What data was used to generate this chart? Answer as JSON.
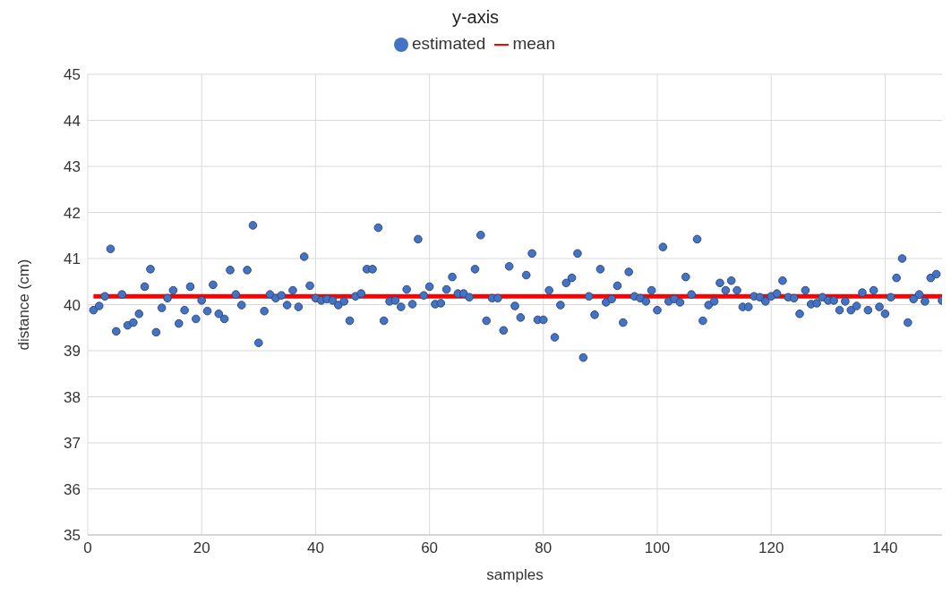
{
  "chart_data": {
    "type": "scatter",
    "title": "y-axis",
    "xlabel": "samples",
    "ylabel": "distance (cm)",
    "xlim": [
      0,
      150
    ],
    "xticks": [
      0,
      20,
      40,
      60,
      80,
      100,
      120,
      140
    ],
    "ylim": [
      35,
      45
    ],
    "yticks": [
      35,
      36,
      37,
      38,
      39,
      40,
      41,
      42,
      43,
      44,
      45
    ],
    "grid": true,
    "legend": "top",
    "marker": "circle",
    "series": [
      {
        "name": "estimated",
        "color": "#4472c4",
        "x": [
          1,
          2,
          3,
          4,
          5,
          6,
          7,
          8,
          9,
          10,
          11,
          12,
          13,
          14,
          15,
          16,
          17,
          18,
          19,
          20,
          21,
          22,
          23,
          24,
          25,
          26,
          27,
          28,
          29,
          30,
          31,
          32,
          33,
          34,
          35,
          36,
          37,
          38,
          39,
          40,
          41,
          42,
          43,
          44,
          45,
          46,
          47,
          48,
          49,
          50,
          51,
          52,
          53,
          54,
          55,
          56,
          57,
          58,
          59,
          60,
          61,
          62,
          63,
          64,
          65,
          66,
          67,
          68,
          69,
          70,
          71,
          72,
          73,
          74,
          75,
          76,
          77,
          78,
          79,
          80,
          81,
          82,
          83,
          84,
          85,
          86,
          87,
          88,
          89,
          90,
          91,
          92,
          93,
          94,
          95,
          96,
          97,
          98,
          99,
          100,
          101,
          102,
          103,
          104,
          105,
          106,
          107,
          108,
          109,
          110,
          111,
          112,
          113,
          114,
          115,
          116,
          117,
          118,
          119,
          120,
          121,
          122,
          123,
          124,
          125,
          126,
          127,
          128,
          129,
          130,
          131,
          132,
          133,
          134,
          135,
          136,
          137,
          138,
          139,
          140,
          141,
          142,
          143,
          144,
          145,
          146,
          147,
          148,
          149,
          150
        ],
        "values": [
          39.88,
          39.97,
          40.18,
          41.21,
          39.42,
          40.22,
          39.55,
          39.61,
          39.8,
          40.39,
          40.77,
          39.4,
          39.93,
          40.14,
          40.31,
          39.59,
          39.88,
          40.39,
          39.69,
          40.09,
          39.86,
          40.43,
          39.8,
          39.69,
          40.75,
          40.22,
          39.99,
          40.75,
          41.72,
          39.17,
          39.86,
          40.22,
          40.14,
          40.2,
          39.99,
          40.31,
          39.95,
          41.04,
          40.41,
          40.14,
          40.09,
          40.12,
          40.09,
          39.99,
          40.07,
          39.65,
          40.18,
          40.24,
          40.77,
          40.77,
          41.67,
          39.65,
          40.07,
          40.09,
          39.95,
          40.33,
          40.01,
          41.42,
          40.2,
          40.39,
          40.01,
          40.03,
          40.33,
          40.6,
          40.24,
          40.24,
          40.16,
          40.77,
          41.51,
          39.65,
          40.14,
          40.14,
          39.44,
          40.83,
          39.97,
          39.72,
          40.64,
          41.11,
          39.67,
          39.67,
          40.31,
          39.29,
          39.99,
          40.47,
          40.58,
          41.11,
          38.85,
          40.18,
          39.78,
          40.77,
          40.05,
          40.12,
          40.41,
          39.61,
          40.71,
          40.18,
          40.14,
          40.07,
          40.31,
          39.88,
          41.25,
          40.07,
          40.12,
          40.05,
          40.6,
          40.22,
          41.42,
          39.65,
          39.99,
          40.07,
          40.47,
          40.31,
          40.52,
          40.31,
          39.95,
          39.95,
          40.18,
          40.16,
          40.07,
          40.18,
          40.24,
          40.52,
          40.16,
          40.14,
          39.8,
          40.31,
          40.01,
          40.03,
          40.16,
          40.09,
          40.09,
          39.88,
          40.07,
          39.88,
          39.97,
          40.26,
          39.88,
          40.31,
          39.95,
          39.8,
          40.16,
          40.58,
          41.0,
          39.61,
          40.12,
          40.22,
          40.07,
          40.58,
          40.66,
          40.09
        ]
      },
      {
        "name": "mean",
        "type": "line",
        "color": "#ff0000",
        "marker": "none",
        "x": [
          1,
          150
        ],
        "values": [
          40.18,
          40.18
        ]
      }
    ]
  }
}
